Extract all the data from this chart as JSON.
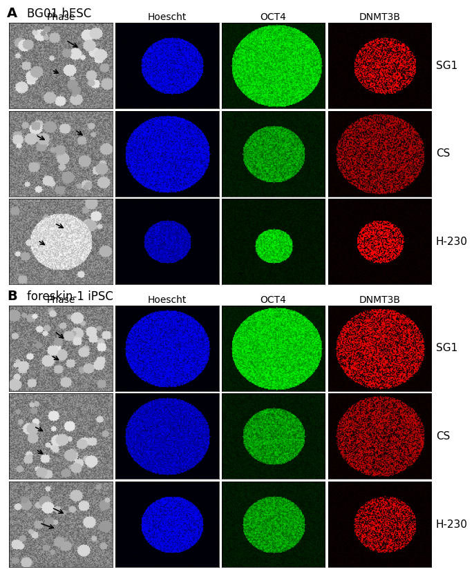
{
  "panel_A_title": "BG01 hESC",
  "panel_B_title": "foreskin-1 iPSC",
  "panel_label_A": "A",
  "panel_label_B": "B",
  "col_labels": [
    "Phase",
    "Hoescht",
    "OCT4",
    "DNMT3B"
  ],
  "row_labels_A": [
    "SG1",
    "CS",
    "H-230"
  ],
  "row_labels_B": [
    "SG1",
    "CS",
    "H-230"
  ],
  "bg_color": "#ffffff",
  "label_fontsize": 11,
  "col_label_fontsize": 10,
  "panel_title_fontsize": 12,
  "panel_letter_fontsize": 14
}
